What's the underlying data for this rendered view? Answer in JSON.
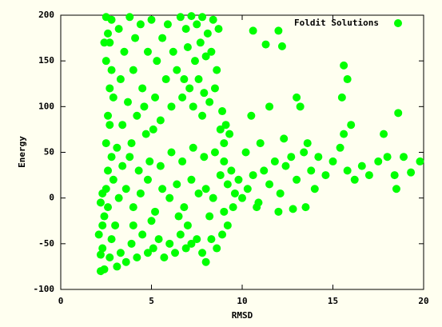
{
  "chart_data": {
    "type": "scatter",
    "xlabel": "RMSD",
    "ylabel": "Energy",
    "xlim": [
      0,
      20
    ],
    "ylim": [
      -100,
      200
    ],
    "xticks": [
      0,
      5,
      10,
      15,
      20
    ],
    "yticks": [
      -100,
      -50,
      0,
      50,
      100,
      150,
      200
    ],
    "legend": "top-right",
    "x": [
      2.2,
      2.4,
      2.3,
      2.1,
      2.4,
      2.2,
      2.5,
      2.3,
      2.6,
      2.5,
      2.6,
      2.7,
      2.5,
      2.6,
      2.5,
      2.8,
      2.7,
      2.8,
      2.9,
      2.7,
      2.8,
      2.9,
      2.6,
      2.8,
      2.7,
      2.2,
      2.4,
      2.3,
      3.2,
      3.5,
      3.8,
      4.1,
      4.4,
      3.3,
      3.7,
      4.0,
      4.5,
      4.8,
      5.0,
      5.3,
      5.6,
      5.9,
      5.2,
      5.8,
      6.1,
      3.4,
      4.2,
      4.7,
      5.5,
      6.2,
      6.4,
      3.1,
      3.9,
      4.6,
      5.1,
      6.6,
      6.9,
      7.2,
      7.5,
      7.8,
      8.1,
      8.4,
      8.7,
      7.0,
      7.4,
      7.7,
      8.0,
      8.3,
      8.6,
      6.8,
      7.1,
      7.6,
      7.9,
      8.2,
      8.5,
      8.9,
      7.3,
      7.8,
      9.1,
      9.3,
      8.8,
      6.7,
      9.0,
      3.0,
      3.3,
      3.6,
      3.9,
      4.2,
      4.5,
      4.8,
      5.1,
      5.4,
      5.7,
      6.0,
      6.3,
      6.6,
      6.9,
      7.2,
      7.5,
      7.8,
      8.0,
      8.3,
      8.6,
      8.9,
      9.2,
      9.5,
      3.2,
      3.6,
      4.0,
      4.4,
      4.8,
      5.2,
      5.6,
      6.0,
      6.4,
      6.8,
      7.2,
      7.6,
      8.0,
      8.4,
      8.8,
      9.2,
      9.6,
      3.4,
      3.8,
      4.3,
      4.9,
      5.5,
      6.1,
      6.7,
      7.3,
      7.9,
      8.5,
      9.0,
      9.4,
      9.8,
      10.0,
      3.1,
      4.0,
      5.0,
      6.5,
      7.0,
      8.2,
      9.0,
      10.3,
      10.6,
      10.9,
      11.2,
      11.5,
      11.8,
      12.1,
      12.4,
      12.7,
      13.0,
      13.4,
      13.8,
      14.2,
      14.6,
      15.0,
      15.4,
      15.8,
      16.2,
      16.6,
      17.0,
      17.5,
      18.0,
      18.4,
      18.9,
      19.3,
      19.8,
      10.2,
      11.0,
      12.3,
      13.6,
      15.6,
      14.0,
      10.8,
      15.6,
      15.8,
      15.5,
      18.6,
      12.0,
      12.2,
      10.6,
      11.3,
      13.0,
      13.2,
      16.0,
      17.8,
      18.5,
      12.8,
      13.5,
      12.0,
      11.5,
      10.5
    ],
    "series": [
      {
        "name": "Foldit Solutions",
        "color": "#00ff00",
        "values": [
          -80,
          -78,
          -55,
          -40,
          -20,
          -5,
          10,
          -30,
          30,
          60,
          90,
          120,
          150,
          180,
          198,
          195,
          170,
          140,
          110,
          80,
          45,
          20,
          -10,
          -45,
          -65,
          -62,
          170,
          5,
          185,
          160,
          198,
          175,
          190,
          130,
          105,
          140,
          120,
          160,
          195,
          150,
          175,
          190,
          110,
          130,
          100,
          80,
          90,
          70,
          85,
          160,
          140,
          55,
          60,
          100,
          75,
          198,
          185,
          199,
          190,
          198,
          180,
          195,
          185,
          165,
          150,
          170,
          155,
          160,
          140,
          130,
          120,
          130,
          115,
          105,
          120,
          95,
          100,
          90,
          80,
          70,
          75,
          110,
          60,
          -30,
          -60,
          -70,
          -50,
          -65,
          -40,
          -60,
          -55,
          -45,
          -65,
          -50,
          -60,
          -40,
          -55,
          -50,
          -45,
          -60,
          -70,
          -45,
          -55,
          -40,
          -30,
          -10,
          0,
          10,
          -10,
          5,
          20,
          -15,
          10,
          0,
          15,
          -10,
          20,
          5,
          10,
          0,
          25,
          15,
          5,
          35,
          45,
          30,
          40,
          35,
          50,
          40,
          55,
          45,
          50,
          40,
          30,
          20,
          0,
          -75,
          -30,
          -25,
          -20,
          -30,
          -20,
          -15,
          10,
          25,
          -5,
          30,
          15,
          40,
          5,
          35,
          45,
          20,
          50,
          30,
          45,
          25,
          40,
          55,
          30,
          20,
          35,
          25,
          40,
          45,
          25,
          45,
          28,
          40,
          50,
          60,
          65,
          60,
          70,
          10,
          -10,
          145,
          130,
          110,
          93,
          183,
          166,
          183,
          168,
          110,
          100,
          80,
          70,
          10,
          -12,
          -10,
          -15,
          100,
          90
        ]
      }
    ]
  }
}
